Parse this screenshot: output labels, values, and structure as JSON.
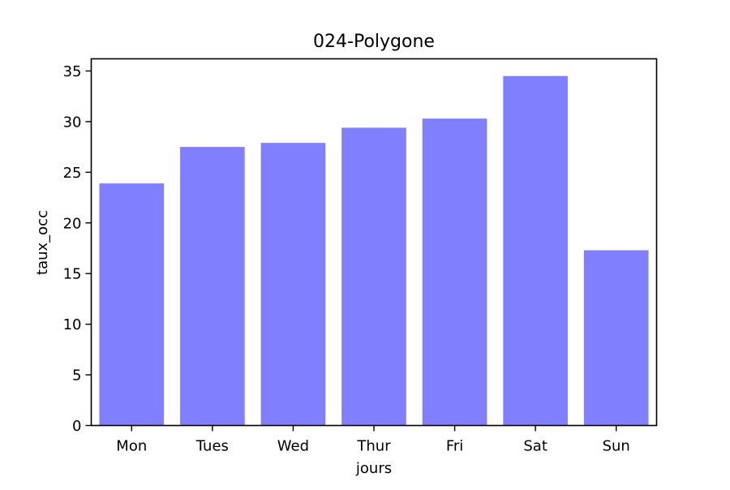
{
  "chart_data": {
    "type": "bar",
    "title": "024-Polygone",
    "xlabel": "jours",
    "ylabel": "taux_occ",
    "categories": [
      "Mon",
      "Tues",
      "Wed",
      "Thur",
      "Fri",
      "Sat",
      "Sun"
    ],
    "values": [
      23.9,
      27.5,
      27.9,
      29.4,
      30.3,
      34.5,
      17.3
    ],
    "ylim": [
      0,
      36.2
    ],
    "yticks": [
      0,
      5,
      10,
      15,
      20,
      25,
      30,
      35
    ],
    "grid": false,
    "legend": "none",
    "bar_color": "#8080ff"
  }
}
